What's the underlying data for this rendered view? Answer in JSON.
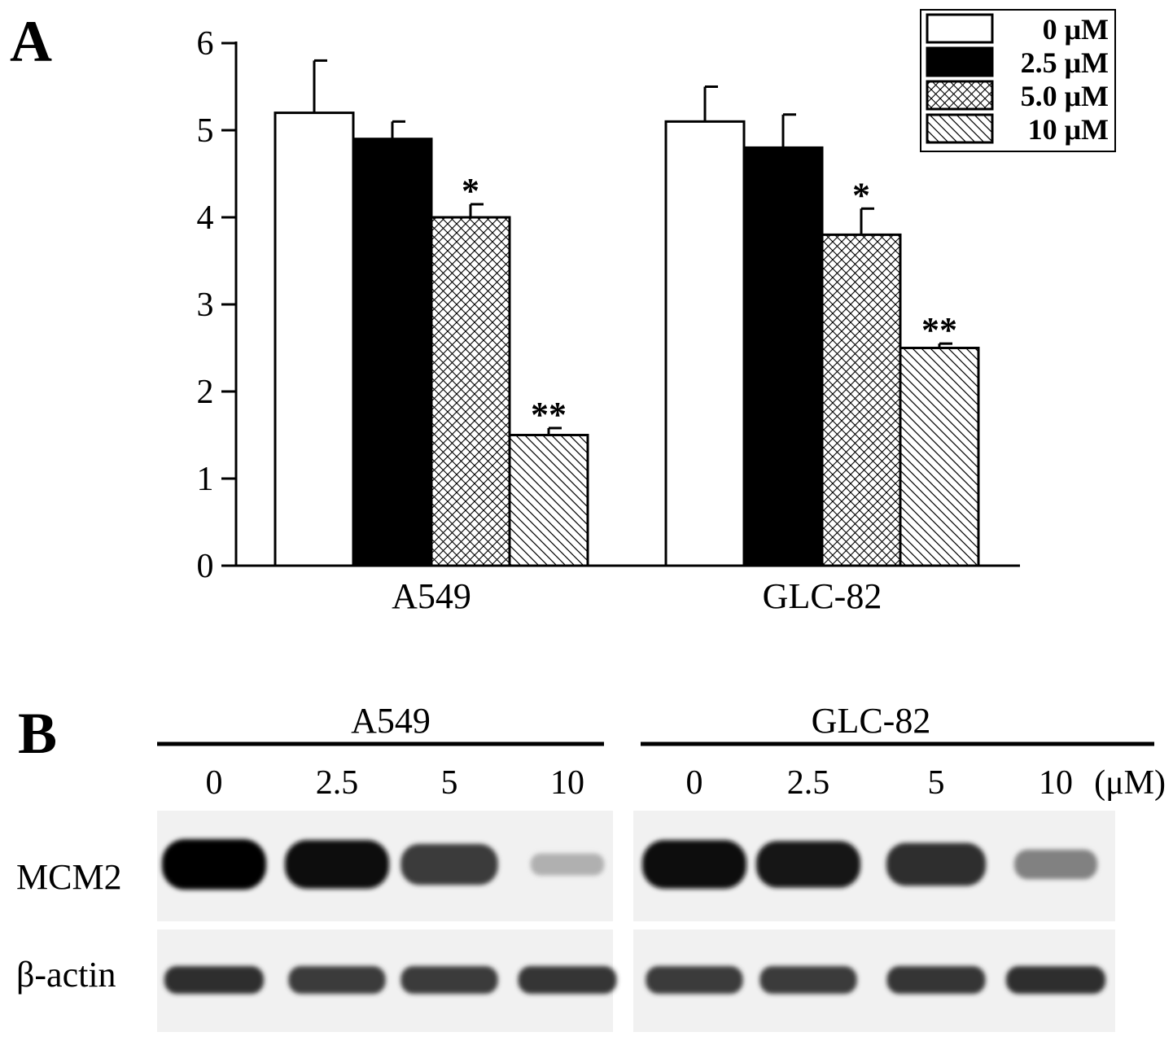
{
  "panels": {
    "a_label": "A",
    "b_label": "B"
  },
  "chart_data": {
    "type": "bar",
    "categories": [
      "A549",
      "GLC-82"
    ],
    "ylim": [
      0,
      6
    ],
    "yticks": [
      "0",
      "1",
      "2",
      "3",
      "4",
      "5",
      "6"
    ],
    "xlabel": "",
    "ylabel": "",
    "legend_position": "top-right",
    "grid": false,
    "series": [
      {
        "name": "0 μM",
        "fill": "white",
        "values": [
          5.2,
          5.1
        ],
        "errors": [
          0.6,
          0.4
        ],
        "annotations": [
          "",
          ""
        ]
      },
      {
        "name": "2.5 μM",
        "fill": "black",
        "values": [
          4.9,
          4.8
        ],
        "errors": [
          0.2,
          0.38
        ],
        "annotations": [
          "",
          ""
        ]
      },
      {
        "name": "5.0 μM",
        "fill": "crosshatch",
        "values": [
          4.0,
          3.8
        ],
        "errors": [
          0.15,
          0.3
        ],
        "annotations": [
          "*",
          "*"
        ]
      },
      {
        "name": "10 μM",
        "fill": "diagonal",
        "values": [
          1.5,
          2.5
        ],
        "errors": [
          0.08,
          0.05
        ],
        "annotations": [
          "**",
          "**"
        ]
      }
    ]
  },
  "western_blot": {
    "groups": [
      {
        "name": "A549",
        "lanes": [
          "0",
          "2.5",
          "5",
          "10"
        ]
      },
      {
        "name": "GLC-82",
        "lanes": [
          "0",
          "2.5",
          "5",
          "10"
        ]
      }
    ],
    "unit": "(μM)",
    "rows": [
      {
        "label": "MCM2",
        "intensity": [
          [
            1.0,
            0.95,
            0.75,
            0.25
          ],
          [
            0.95,
            0.9,
            0.8,
            0.45
          ]
        ]
      },
      {
        "label": "β-actin",
        "intensity": [
          [
            0.8,
            0.75,
            0.75,
            0.78
          ],
          [
            0.75,
            0.75,
            0.78,
            0.8
          ]
        ]
      }
    ]
  }
}
